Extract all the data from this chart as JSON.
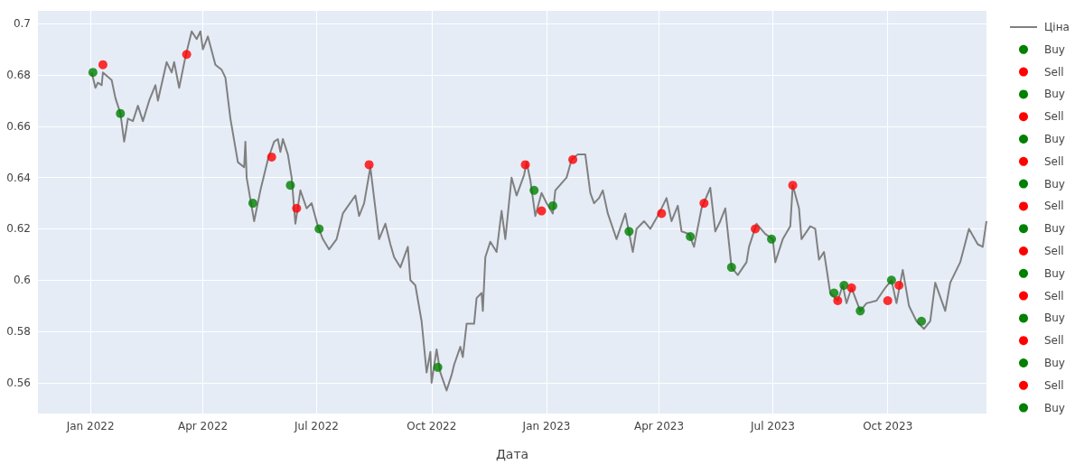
{
  "chart_data": {
    "type": "line",
    "xlabel": "Дата",
    "xlim": [
      "2021-11-20",
      "2023-12-19"
    ],
    "ylim": [
      0.548,
      0.705
    ],
    "xticks": [
      {
        "value": "2022-01-01",
        "label": "Jan 2022"
      },
      {
        "value": "2022-04-01",
        "label": "Apr 2022"
      },
      {
        "value": "2022-07-01",
        "label": "Jul 2022"
      },
      {
        "value": "2022-10-01",
        "label": "Oct 2022"
      },
      {
        "value": "2023-01-01",
        "label": "Jan 2023"
      },
      {
        "value": "2023-04-01",
        "label": "Apr 2023"
      },
      {
        "value": "2023-07-01",
        "label": "Jul 2023"
      },
      {
        "value": "2023-10-01",
        "label": "Oct 2023"
      }
    ],
    "yticks": [
      0.56,
      0.58,
      0.6,
      0.62,
      0.64,
      0.66,
      0.68,
      0.7
    ],
    "grid": true,
    "legend": "right",
    "marker": "circle",
    "series": [
      {
        "name": "Ціна",
        "color": "#808080",
        "marker": "none",
        "x": [
          "2022-01-02",
          "2022-01-05",
          "2022-01-07",
          "2022-01-10",
          "2022-01-11",
          "2022-01-18",
          "2022-01-21",
          "2022-01-25",
          "2022-01-28",
          "2022-01-31",
          "2022-02-04",
          "2022-02-08",
          "2022-02-12",
          "2022-02-17",
          "2022-02-22",
          "2022-02-24",
          "2022-03-03",
          "2022-03-07",
          "2022-03-09",
          "2022-03-13",
          "2022-03-18",
          "2022-03-23",
          "2022-03-27",
          "2022-03-30",
          "2022-04-01",
          "2022-04-05",
          "2022-04-11",
          "2022-04-16",
          "2022-04-19",
          "2022-04-23",
          "2022-04-29",
          "2022-05-04",
          "2022-05-05",
          "2022-05-06",
          "2022-05-12",
          "2022-05-17",
          "2022-05-23",
          "2022-05-28",
          "2022-05-31",
          "2022-06-02",
          "2022-06-04",
          "2022-06-08",
          "2022-06-11",
          "2022-06-14",
          "2022-06-18",
          "2022-06-23",
          "2022-06-27",
          "2022-07-02",
          "2022-07-06",
          "2022-07-11",
          "2022-07-17",
          "2022-07-22",
          "2022-08-01",
          "2022-08-04",
          "2022-08-08",
          "2022-08-13",
          "2022-08-20",
          "2022-08-25",
          "2022-08-29",
          "2022-09-01",
          "2022-09-06",
          "2022-09-12",
          "2022-09-14",
          "2022-09-18",
          "2022-09-23",
          "2022-09-27",
          "2022-09-30",
          "2022-10-01",
          "2022-10-05",
          "2022-10-08",
          "2022-10-13",
          "2022-10-17",
          "2022-10-19",
          "2022-10-24",
          "2022-10-26",
          "2022-10-29",
          "2022-11-04",
          "2022-11-06",
          "2022-11-10",
          "2022-11-11",
          "2022-11-13",
          "2022-11-17",
          "2022-11-22",
          "2022-11-26",
          "2022-11-29",
          "2022-12-04",
          "2022-12-08",
          "2022-12-14",
          "2022-12-16",
          "2022-12-19",
          "2022-12-23",
          "2022-12-28",
          "2023-01-01",
          "2023-01-06",
          "2023-01-08",
          "2023-01-17",
          "2023-01-21",
          "2023-01-26",
          "2023-02-01",
          "2023-02-05",
          "2023-02-08",
          "2023-02-12",
          "2023-02-15",
          "2023-02-19",
          "2023-02-26",
          "2023-03-05",
          "2023-03-11",
          "2023-03-14",
          "2023-03-20",
          "2023-03-25",
          "2023-04-01",
          "2023-04-07",
          "2023-04-11",
          "2023-04-16",
          "2023-04-19",
          "2023-04-25",
          "2023-04-29",
          "2023-05-05",
          "2023-05-12",
          "2023-05-16",
          "2023-05-20",
          "2023-05-24",
          "2023-05-29",
          "2023-06-03",
          "2023-06-10",
          "2023-06-12",
          "2023-06-18",
          "2023-06-25",
          "2023-07-01",
          "2023-07-03",
          "2023-07-09",
          "2023-07-15",
          "2023-07-17",
          "2023-07-22",
          "2023-07-24",
          "2023-07-31",
          "2023-08-04",
          "2023-08-07",
          "2023-08-11",
          "2023-08-16",
          "2023-08-22",
          "2023-08-26",
          "2023-08-29",
          "2023-09-02",
          "2023-09-09",
          "2023-09-14",
          "2023-09-22",
          "2023-09-29",
          "2023-10-04",
          "2023-10-08",
          "2023-10-13",
          "2023-10-18",
          "2023-10-24",
          "2023-10-30",
          "2023-11-04",
          "2023-11-08",
          "2023-11-16",
          "2023-11-20",
          "2023-11-28",
          "2023-12-05",
          "2023-12-12",
          "2023-12-16",
          "2023-12-19"
        ],
        "values": [
          0.681,
          0.675,
          0.677,
          0.676,
          0.681,
          0.678,
          0.671,
          0.665,
          0.654,
          0.663,
          0.662,
          0.668,
          0.662,
          0.67,
          0.676,
          0.67,
          0.685,
          0.681,
          0.685,
          0.675,
          0.687,
          0.697,
          0.694,
          0.697,
          0.69,
          0.695,
          0.684,
          0.682,
          0.679,
          0.663,
          0.646,
          0.644,
          0.654,
          0.64,
          0.623,
          0.635,
          0.647,
          0.654,
          0.655,
          0.65,
          0.655,
          0.649,
          0.64,
          0.622,
          0.635,
          0.628,
          0.63,
          0.621,
          0.616,
          0.612,
          0.616,
          0.626,
          0.633,
          0.625,
          0.63,
          0.644,
          0.616,
          0.622,
          0.614,
          0.609,
          0.605,
          0.613,
          0.6,
          0.598,
          0.584,
          0.564,
          0.572,
          0.56,
          0.573,
          0.564,
          0.557,
          0.563,
          0.567,
          0.574,
          0.57,
          0.583,
          0.583,
          0.593,
          0.595,
          0.588,
          0.609,
          0.615,
          0.611,
          0.627,
          0.616,
          0.64,
          0.633,
          0.641,
          0.646,
          0.639,
          0.625,
          0.634,
          0.63,
          0.626,
          0.635,
          0.64,
          0.647,
          0.649,
          0.649,
          0.634,
          0.63,
          0.632,
          0.635,
          0.626,
          0.616,
          0.626,
          0.611,
          0.62,
          0.623,
          0.62,
          0.626,
          0.632,
          0.623,
          0.629,
          0.619,
          0.618,
          0.613,
          0.628,
          0.636,
          0.619,
          0.623,
          0.628,
          0.605,
          0.602,
          0.607,
          0.613,
          0.622,
          0.618,
          0.616,
          0.607,
          0.616,
          0.621,
          0.637,
          0.628,
          0.616,
          0.621,
          0.62,
          0.608,
          0.611,
          0.595,
          0.592,
          0.598,
          0.591,
          0.597,
          0.588,
          0.591,
          0.592,
          0.597,
          0.6,
          0.591,
          0.604,
          0.59,
          0.584,
          0.581,
          0.584,
          0.599,
          0.588,
          0.599,
          0.607,
          0.62,
          0.614,
          0.613,
          0.623
        ]
      },
      {
        "name": "Buy",
        "type": "scatter",
        "color": "#008000",
        "x": [
          "2022-01-03"
        ],
        "values": [
          0.681
        ]
      },
      {
        "name": "Sell",
        "type": "scatter",
        "color": "#ff0000",
        "x": [
          "2022-01-11"
        ],
        "values": [
          0.684
        ]
      },
      {
        "name": "Buy",
        "type": "scatter",
        "color": "#008000",
        "x": [
          "2022-01-25"
        ],
        "values": [
          0.665
        ]
      },
      {
        "name": "Sell",
        "type": "scatter",
        "color": "#ff0000",
        "x": [
          "2022-03-19"
        ],
        "values": [
          0.688
        ]
      },
      {
        "name": "Buy",
        "type": "scatter",
        "color": "#008000",
        "x": [
          "2022-05-11"
        ],
        "values": [
          0.63
        ]
      },
      {
        "name": "Sell",
        "type": "scatter",
        "color": "#ff0000",
        "x": [
          "2022-05-26"
        ],
        "values": [
          0.648
        ]
      },
      {
        "name": "Buy",
        "type": "scatter",
        "color": "#008000",
        "x": [
          "2022-06-10"
        ],
        "values": [
          0.637
        ]
      },
      {
        "name": "Sell",
        "type": "scatter",
        "color": "#ff0000",
        "x": [
          "2022-06-15"
        ],
        "values": [
          0.628
        ]
      },
      {
        "name": "Buy",
        "type": "scatter",
        "color": "#008000",
        "x": [
          "2022-07-03"
        ],
        "values": [
          0.62
        ]
      },
      {
        "name": "Sell",
        "type": "scatter",
        "color": "#ff0000",
        "x": [
          "2022-08-12"
        ],
        "values": [
          0.645
        ]
      },
      {
        "name": "Buy",
        "type": "scatter",
        "color": "#008000",
        "x": [
          "2022-10-06"
        ],
        "values": [
          0.566
        ]
      },
      {
        "name": "Sell",
        "type": "scatter",
        "color": "#ff0000",
        "x": [
          "2022-12-15"
        ],
        "values": [
          0.645
        ]
      },
      {
        "name": "Buy",
        "type": "scatter",
        "color": "#008000",
        "x": [
          "2022-12-22"
        ],
        "values": [
          0.635
        ]
      },
      {
        "name": "Sell",
        "type": "scatter",
        "color": "#ff0000",
        "x": [
          "2022-12-28"
        ],
        "values": [
          0.627
        ]
      },
      {
        "name": "Buy",
        "type": "scatter",
        "color": "#008000",
        "x": [
          "2023-01-06"
        ],
        "values": [
          0.629
        ]
      },
      {
        "name": "Sell",
        "type": "scatter",
        "color": "#ff0000",
        "x": [
          "2023-01-22"
        ],
        "values": [
          0.647
        ]
      },
      {
        "name": "Buy",
        "type": "scatter",
        "color": "#008000",
        "x": [
          "2023-03-08"
        ],
        "values": [
          0.619
        ]
      },
      {
        "type": "scatter",
        "color": "#ff0000",
        "x": [
          "2023-04-03"
        ],
        "values": [
          0.626
        ]
      },
      {
        "type": "scatter",
        "color": "#008000",
        "x": [
          "2023-04-26"
        ],
        "values": [
          0.617
        ]
      },
      {
        "type": "scatter",
        "color": "#ff0000",
        "x": [
          "2023-05-07"
        ],
        "values": [
          0.63
        ]
      },
      {
        "type": "scatter",
        "color": "#008000",
        "x": [
          "2023-05-29"
        ],
        "values": [
          0.605
        ]
      },
      {
        "type": "scatter",
        "color": "#ff0000",
        "x": [
          "2023-06-17"
        ],
        "values": [
          0.62
        ]
      },
      {
        "type": "scatter",
        "color": "#008000",
        "x": [
          "2023-06-30"
        ],
        "values": [
          0.616
        ]
      },
      {
        "type": "scatter",
        "color": "#ff0000",
        "x": [
          "2023-07-17"
        ],
        "values": [
          0.637
        ]
      },
      {
        "type": "scatter",
        "color": "#008000",
        "x": [
          "2023-08-19"
        ],
        "values": [
          0.595
        ]
      },
      {
        "type": "scatter",
        "color": "#ff0000",
        "x": [
          "2023-08-22"
        ],
        "values": [
          0.592
        ]
      },
      {
        "type": "scatter",
        "color": "#008000",
        "x": [
          "2023-08-27"
        ],
        "values": [
          0.598
        ]
      },
      {
        "type": "scatter",
        "color": "#ff0000",
        "x": [
          "2023-09-02"
        ],
        "values": [
          0.597
        ]
      },
      {
        "type": "scatter",
        "color": "#008000",
        "x": [
          "2023-09-09"
        ],
        "values": [
          0.588
        ]
      },
      {
        "type": "scatter",
        "color": "#ff0000",
        "x": [
          "2023-10-01"
        ],
        "values": [
          0.592
        ]
      },
      {
        "type": "scatter",
        "color": "#008000",
        "x": [
          "2023-10-04"
        ],
        "values": [
          0.6
        ]
      },
      {
        "type": "scatter",
        "color": "#ff0000",
        "x": [
          "2023-10-10"
        ],
        "values": [
          0.598
        ]
      },
      {
        "type": "scatter",
        "color": "#008000",
        "x": [
          "2023-10-28"
        ],
        "values": [
          0.584
        ]
      }
    ]
  }
}
